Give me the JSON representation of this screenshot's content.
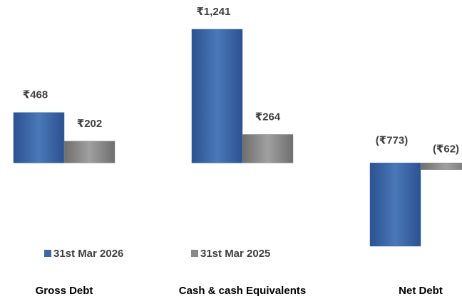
{
  "chart_data": {
    "type": "bar",
    "categories": [
      "Gross Debt",
      "Cash & cash Equivalents",
      "Net Debt"
    ],
    "series": [
      {
        "name": "31st Mar 2026",
        "color": "#3d68a8",
        "values": [
          468,
          1241,
          -773
        ],
        "value_labels": [
          "₹468",
          "₹1,241",
          "(₹773)"
        ]
      },
      {
        "name": "31st Mar 2025",
        "color": "#8a8a8a",
        "values": [
          202,
          264,
          -62
        ],
        "value_labels": [
          "₹202",
          "₹264",
          "(₹62)"
        ]
      }
    ]
  }
}
